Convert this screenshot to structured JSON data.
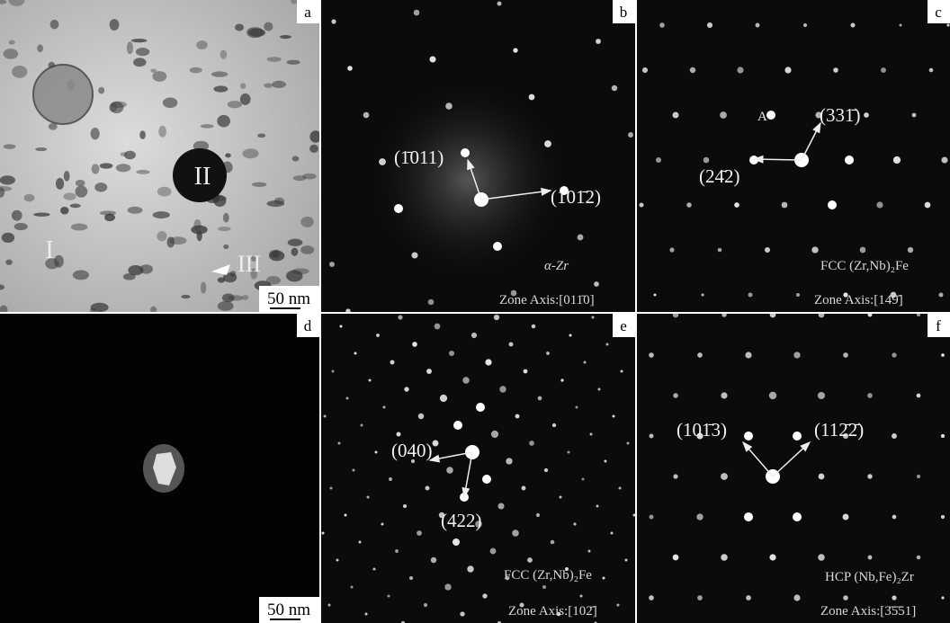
{
  "panels": [
    {
      "letter": "a",
      "regions": [
        "I",
        "II",
        "III"
      ],
      "scale_bar": "50 nm"
    },
    {
      "letter": "b",
      "indices": [
        "(1̄011)",
        "(101̄2)"
      ],
      "phase": "α-Zr",
      "zone_axis": "Zone Axis:[011̄0]"
    },
    {
      "letter": "c",
      "spot": "A",
      "indices": [
        "(331̄)",
        "(24̄2)"
      ],
      "phase": "FCC (Zr,Nb)₂Fe",
      "zone_axis": "Zone Axis:[14̄9̄]"
    },
    {
      "letter": "d",
      "scale_bar": "50 nm"
    },
    {
      "letter": "e",
      "indices": [
        "(040)",
        "(422)"
      ],
      "phase": "FCC (Zr,Nb)₂Fe",
      "zone_axis": "Zone Axis:[102̄]"
    },
    {
      "letter": "f",
      "indices": [
        "(101̄3)",
        "(112̄2̄)"
      ],
      "phase": "HCP (Nb,Fe)₂Zr",
      "zone_axis": "Zone Axis:[3̄5̄51]"
    }
  ]
}
